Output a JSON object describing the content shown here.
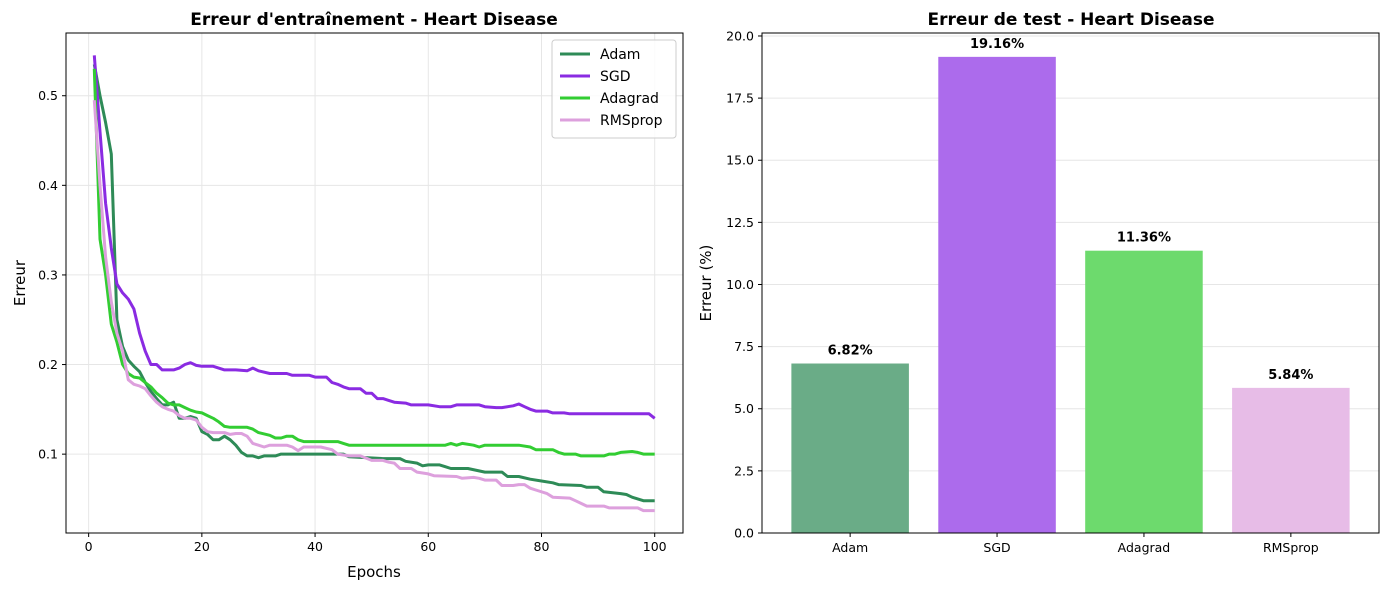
{
  "chart_data": [
    {
      "type": "line",
      "title": "Erreur d'entraînement - Heart Disease",
      "xlabel": "Epochs",
      "ylabel": "Erreur",
      "xlim": [
        -4,
        105
      ],
      "ylim": [
        0.012,
        0.57
      ],
      "xticks": [
        0,
        20,
        40,
        60,
        80,
        100
      ],
      "yticks": [
        0.1,
        0.2,
        0.3,
        0.4,
        0.5
      ],
      "grid": true,
      "legend": "top-right",
      "series": [
        {
          "name": "Adam",
          "color": "#2e8b57",
          "points": [
            [
              1,
              0.535
            ],
            [
              2,
              0.5
            ],
            [
              3,
              0.47
            ],
            [
              4,
              0.435
            ],
            [
              5,
              0.25
            ],
            [
              6,
              0.22
            ],
            [
              7,
              0.205
            ],
            [
              8,
              0.198
            ],
            [
              9,
              0.192
            ],
            [
              10,
              0.18
            ],
            [
              11,
              0.17
            ],
            [
              12,
              0.162
            ],
            [
              13,
              0.155
            ],
            [
              14,
              0.155
            ],
            [
              15,
              0.158
            ],
            [
              16,
              0.14
            ],
            [
              17,
              0.14
            ],
            [
              18,
              0.142
            ],
            [
              19,
              0.14
            ],
            [
              20,
              0.125
            ],
            [
              21,
              0.122
            ],
            [
              22,
              0.116
            ],
            [
              23,
              0.116
            ],
            [
              24,
              0.12
            ],
            [
              25,
              0.116
            ],
            [
              26,
              0.11
            ],
            [
              27,
              0.102
            ],
            [
              28,
              0.098
            ],
            [
              29,
              0.098
            ],
            [
              30,
              0.096
            ],
            [
              31,
              0.098
            ],
            [
              33,
              0.098
            ],
            [
              34,
              0.1
            ],
            [
              35,
              0.1
            ],
            [
              36,
              0.1
            ],
            [
              38,
              0.1
            ],
            [
              45,
              0.1
            ],
            [
              46,
              0.097
            ],
            [
              52,
              0.095
            ],
            [
              55,
              0.095
            ],
            [
              56,
              0.092
            ],
            [
              58,
              0.09
            ],
            [
              59,
              0.087
            ],
            [
              60,
              0.088
            ],
            [
              62,
              0.088
            ],
            [
              63,
              0.086
            ],
            [
              64,
              0.084
            ],
            [
              67,
              0.084
            ],
            [
              70,
              0.08
            ],
            [
              73,
              0.08
            ],
            [
              74,
              0.075
            ],
            [
              75,
              0.075
            ],
            [
              76,
              0.075
            ],
            [
              78,
              0.072
            ],
            [
              80,
              0.07
            ],
            [
              82,
              0.068
            ],
            [
              83,
              0.066
            ],
            [
              87,
              0.065
            ],
            [
              88,
              0.063
            ],
            [
              90,
              0.063
            ],
            [
              91,
              0.058
            ],
            [
              94,
              0.056
            ],
            [
              95,
              0.055
            ],
            [
              96,
              0.052
            ],
            [
              97,
              0.05
            ],
            [
              98,
              0.048
            ],
            [
              100,
              0.048
            ]
          ]
        },
        {
          "name": "SGD",
          "color": "#8a2be2",
          "points": [
            [
              1,
              0.545
            ],
            [
              2,
              0.46
            ],
            [
              3,
              0.38
            ],
            [
              4,
              0.33
            ],
            [
              5,
              0.29
            ],
            [
              6,
              0.28
            ],
            [
              7,
              0.273
            ],
            [
              8,
              0.262
            ],
            [
              9,
              0.235
            ],
            [
              10,
              0.215
            ],
            [
              11,
              0.2
            ],
            [
              12,
              0.2
            ],
            [
              13,
              0.194
            ],
            [
              14,
              0.194
            ],
            [
              15,
              0.194
            ],
            [
              16,
              0.196
            ],
            [
              17,
              0.2
            ],
            [
              18,
              0.202
            ],
            [
              19,
              0.199
            ],
            [
              20,
              0.198
            ],
            [
              22,
              0.198
            ],
            [
              24,
              0.194
            ],
            [
              26,
              0.194
            ],
            [
              28,
              0.193
            ],
            [
              29,
              0.196
            ],
            [
              30,
              0.193
            ],
            [
              32,
              0.19
            ],
            [
              35,
              0.19
            ],
            [
              36,
              0.188
            ],
            [
              39,
              0.188
            ],
            [
              40,
              0.186
            ],
            [
              42,
              0.186
            ],
            [
              43,
              0.18
            ],
            [
              44,
              0.178
            ],
            [
              45,
              0.175
            ],
            [
              46,
              0.173
            ],
            [
              48,
              0.173
            ],
            [
              49,
              0.168
            ],
            [
              50,
              0.168
            ],
            [
              51,
              0.162
            ],
            [
              52,
              0.162
            ],
            [
              53,
              0.16
            ],
            [
              54,
              0.158
            ],
            [
              56,
              0.157
            ],
            [
              57,
              0.155
            ],
            [
              59,
              0.155
            ],
            [
              60,
              0.155
            ],
            [
              62,
              0.153
            ],
            [
              64,
              0.153
            ],
            [
              65,
              0.155
            ],
            [
              69,
              0.155
            ],
            [
              70,
              0.153
            ],
            [
              72,
              0.152
            ],
            [
              73,
              0.152
            ],
            [
              75,
              0.154
            ],
            [
              76,
              0.156
            ],
            [
              77,
              0.153
            ],
            [
              78,
              0.15
            ],
            [
              79,
              0.148
            ],
            [
              81,
              0.148
            ],
            [
              82,
              0.146
            ],
            [
              84,
              0.146
            ],
            [
              85,
              0.145
            ],
            [
              99,
              0.145
            ],
            [
              100,
              0.14
            ]
          ]
        },
        {
          "name": "Adagrad",
          "color": "#32cd32",
          "points": [
            [
              1,
              0.53
            ],
            [
              2,
              0.34
            ],
            [
              3,
              0.3
            ],
            [
              4,
              0.245
            ],
            [
              5,
              0.225
            ],
            [
              6,
              0.2
            ],
            [
              7,
              0.19
            ],
            [
              8,
              0.186
            ],
            [
              9,
              0.185
            ],
            [
              10,
              0.18
            ],
            [
              11,
              0.175
            ],
            [
              12,
              0.168
            ],
            [
              13,
              0.163
            ],
            [
              14,
              0.157
            ],
            [
              15,
              0.155
            ],
            [
              16,
              0.155
            ],
            [
              17,
              0.152
            ],
            [
              18,
              0.149
            ],
            [
              19,
              0.147
            ],
            [
              20,
              0.146
            ],
            [
              21,
              0.143
            ],
            [
              22,
              0.14
            ],
            [
              23,
              0.136
            ],
            [
              24,
              0.131
            ],
            [
              25,
              0.13
            ],
            [
              28,
              0.13
            ],
            [
              29,
              0.128
            ],
            [
              30,
              0.124
            ],
            [
              32,
              0.121
            ],
            [
              33,
              0.118
            ],
            [
              34,
              0.118
            ],
            [
              35,
              0.12
            ],
            [
              36,
              0.12
            ],
            [
              37,
              0.116
            ],
            [
              38,
              0.114
            ],
            [
              44,
              0.114
            ],
            [
              45,
              0.112
            ],
            [
              46,
              0.11
            ],
            [
              63,
              0.11
            ],
            [
              64,
              0.112
            ],
            [
              65,
              0.11
            ],
            [
              66,
              0.112
            ],
            [
              68,
              0.11
            ],
            [
              69,
              0.108
            ],
            [
              70,
              0.11
            ],
            [
              76,
              0.11
            ],
            [
              78,
              0.108
            ],
            [
              79,
              0.105
            ],
            [
              82,
              0.105
            ],
            [
              83,
              0.102
            ],
            [
              84,
              0.1
            ],
            [
              86,
              0.1
            ],
            [
              87,
              0.098
            ],
            [
              91,
              0.098
            ],
            [
              92,
              0.1
            ],
            [
              93,
              0.1
            ],
            [
              94,
              0.102
            ],
            [
              96,
              0.103
            ],
            [
              97,
              0.102
            ],
            [
              98,
              0.1
            ],
            [
              100,
              0.1
            ]
          ]
        },
        {
          "name": "RMSprop",
          "color": "#dda0dd",
          "points": [
            [
              1,
              0.495
            ],
            [
              2,
              0.4
            ],
            [
              3,
              0.32
            ],
            [
              4,
              0.27
            ],
            [
              5,
              0.235
            ],
            [
              6,
              0.215
            ],
            [
              7,
              0.183
            ],
            [
              8,
              0.178
            ],
            [
              9,
              0.176
            ],
            [
              10,
              0.173
            ],
            [
              11,
              0.165
            ],
            [
              12,
              0.158
            ],
            [
              13,
              0.153
            ],
            [
              14,
              0.15
            ],
            [
              15,
              0.148
            ],
            [
              16,
              0.143
            ],
            [
              17,
              0.14
            ],
            [
              18,
              0.14
            ],
            [
              19,
              0.138
            ],
            [
              20,
              0.13
            ],
            [
              21,
              0.125
            ],
            [
              22,
              0.124
            ],
            [
              24,
              0.124
            ],
            [
              25,
              0.122
            ],
            [
              26,
              0.123
            ],
            [
              27,
              0.123
            ],
            [
              28,
              0.12
            ],
            [
              29,
              0.112
            ],
            [
              30,
              0.11
            ],
            [
              31,
              0.108
            ],
            [
              32,
              0.11
            ],
            [
              33,
              0.11
            ],
            [
              35,
              0.11
            ],
            [
              36,
              0.108
            ],
            [
              37,
              0.104
            ],
            [
              38,
              0.108
            ],
            [
              41,
              0.108
            ],
            [
              43,
              0.105
            ],
            [
              44,
              0.1
            ],
            [
              46,
              0.098
            ],
            [
              48,
              0.098
            ],
            [
              50,
              0.093
            ],
            [
              52,
              0.093
            ],
            [
              53,
              0.091
            ],
            [
              54,
              0.09
            ],
            [
              55,
              0.084
            ],
            [
              57,
              0.084
            ],
            [
              58,
              0.08
            ],
            [
              60,
              0.078
            ],
            [
              61,
              0.076
            ],
            [
              65,
              0.075
            ],
            [
              66,
              0.073
            ],
            [
              68,
              0.074
            ],
            [
              69,
              0.073
            ],
            [
              70,
              0.071
            ],
            [
              72,
              0.071
            ],
            [
              73,
              0.065
            ],
            [
              75,
              0.065
            ],
            [
              76,
              0.066
            ],
            [
              77,
              0.066
            ],
            [
              78,
              0.062
            ],
            [
              79,
              0.06
            ],
            [
              81,
              0.056
            ],
            [
              82,
              0.052
            ],
            [
              85,
              0.051
            ],
            [
              86,
              0.048
            ],
            [
              87,
              0.045
            ],
            [
              88,
              0.042
            ],
            [
              89,
              0.042
            ],
            [
              91,
              0.042
            ],
            [
              92,
              0.04
            ],
            [
              97,
              0.04
            ],
            [
              98,
              0.037
            ],
            [
              100,
              0.037
            ]
          ]
        }
      ]
    },
    {
      "type": "bar",
      "title": "Erreur de test - Heart Disease",
      "xlabel": "",
      "ylabel": "Erreur (%)",
      "ylim": [
        0,
        20.12
      ],
      "yticks": [
        0.0,
        2.5,
        5.0,
        7.5,
        10.0,
        12.5,
        15.0,
        17.5,
        20.0
      ],
      "ytick_labels": [
        "0.0",
        "2.5",
        "5.0",
        "7.5",
        "10.0",
        "12.5",
        "15.0",
        "17.5",
        "20.0"
      ],
      "grid": true,
      "categories": [
        "Adam",
        "SGD",
        "Adagrad",
        "RMSprop"
      ],
      "values": [
        6.82,
        19.16,
        11.36,
        5.84
      ],
      "value_labels": [
        "6.82%",
        "19.16%",
        "11.36%",
        "5.84%"
      ],
      "colors": [
        "#6aac87",
        "#ac6bec",
        "#6dda6d",
        "#e7bce7"
      ]
    }
  ]
}
